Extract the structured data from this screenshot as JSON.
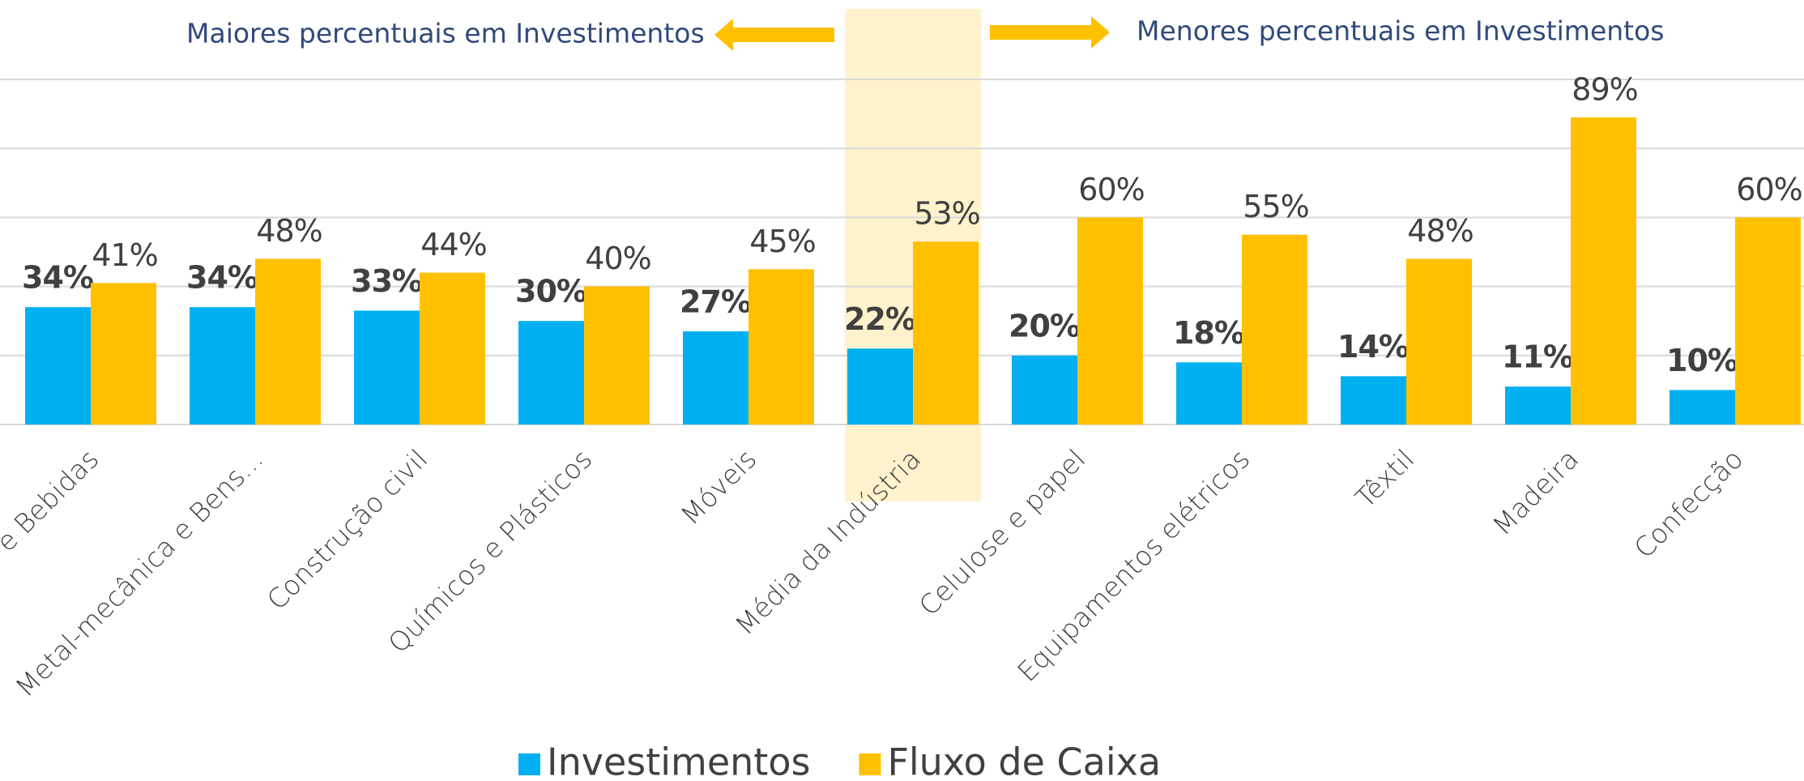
{
  "chart_data": {
    "type": "bar",
    "annotations": [
      "Maiores percentuais em Investimentos",
      "Menores percentuais em Investimentos"
    ],
    "categories": [
      "Alimentos e Bebidas",
      "Metal-mecânica e Bens...",
      "Construção civil",
      "Químicos e Plásticos",
      "Móveis",
      "Média da Indústria",
      "Celulose e papel",
      "Equipamentos elétricos",
      "Têxtil",
      "Madeira",
      "Confecção"
    ],
    "series": [
      {
        "name": "Investimentos",
        "color": "#00b0f0",
        "values": [
          34,
          34,
          33,
          30,
          27,
          22,
          20,
          18,
          14,
          11,
          10
        ],
        "value_labels": [
          "34%",
          "34%",
          "33%",
          "30%",
          "27%",
          "22%",
          "20%",
          "18%",
          "14%",
          "11%",
          "10%"
        ]
      },
      {
        "name": "Fluxo de Caixa",
        "color": "#ffc000",
        "values": [
          41,
          48,
          44,
          40,
          45,
          53,
          60,
          55,
          48,
          89,
          60
        ],
        "value_labels": [
          "41%",
          "48%",
          "44%",
          "40%",
          "45%",
          "53%",
          "60%",
          "55%",
          "48%",
          "89%",
          "60%"
        ]
      }
    ],
    "ylim": [
      0,
      100
    ],
    "yticks": [
      0,
      20,
      40,
      60,
      80,
      100
    ],
    "grid": true,
    "highlight": 5
  }
}
